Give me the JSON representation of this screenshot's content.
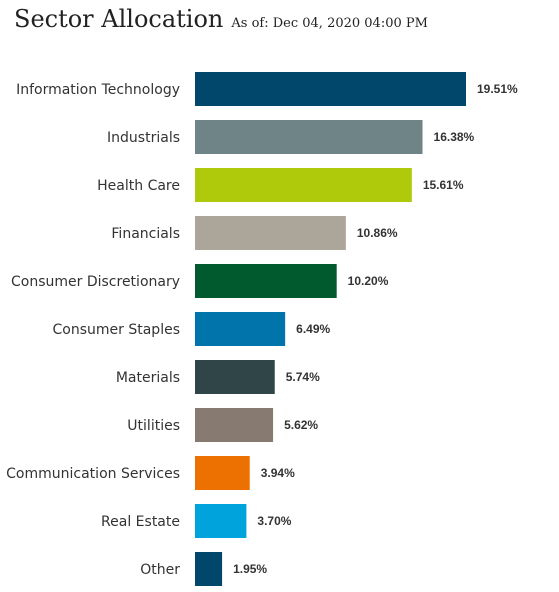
{
  "header": {
    "title": "Sector Allocation",
    "as_of": "As of: Dec 04, 2020 04:00 PM"
  },
  "chart_data": {
    "type": "bar",
    "orientation": "horizontal",
    "categories": [
      "Information Technology",
      "Industrials",
      "Health Care",
      "Financials",
      "Consumer Discretionary",
      "Consumer Staples",
      "Materials",
      "Utilities",
      "Communication Services",
      "Real Estate",
      "Other"
    ],
    "values": [
      19.51,
      16.38,
      15.61,
      10.86,
      10.2,
      6.49,
      5.74,
      5.62,
      3.94,
      3.7,
      1.95
    ],
    "value_labels": [
      "19.51%",
      "16.38%",
      "15.61%",
      "10.86%",
      "10.20%",
      "6.49%",
      "5.74%",
      "5.62%",
      "3.94%",
      "3.70%",
      "1.95%"
    ],
    "colors": [
      "#00476b",
      "#6e8487",
      "#afca0b",
      "#aca59a",
      "#005a2e",
      "#0074ab",
      "#2f4547",
      "#877a70",
      "#ec7100",
      "#00a3dc",
      "#00476b"
    ],
    "title": "Sector Allocation",
    "xlabel": "",
    "ylabel": "",
    "xlim": [
      0,
      19.51
    ],
    "grid": false,
    "legend": false
  }
}
